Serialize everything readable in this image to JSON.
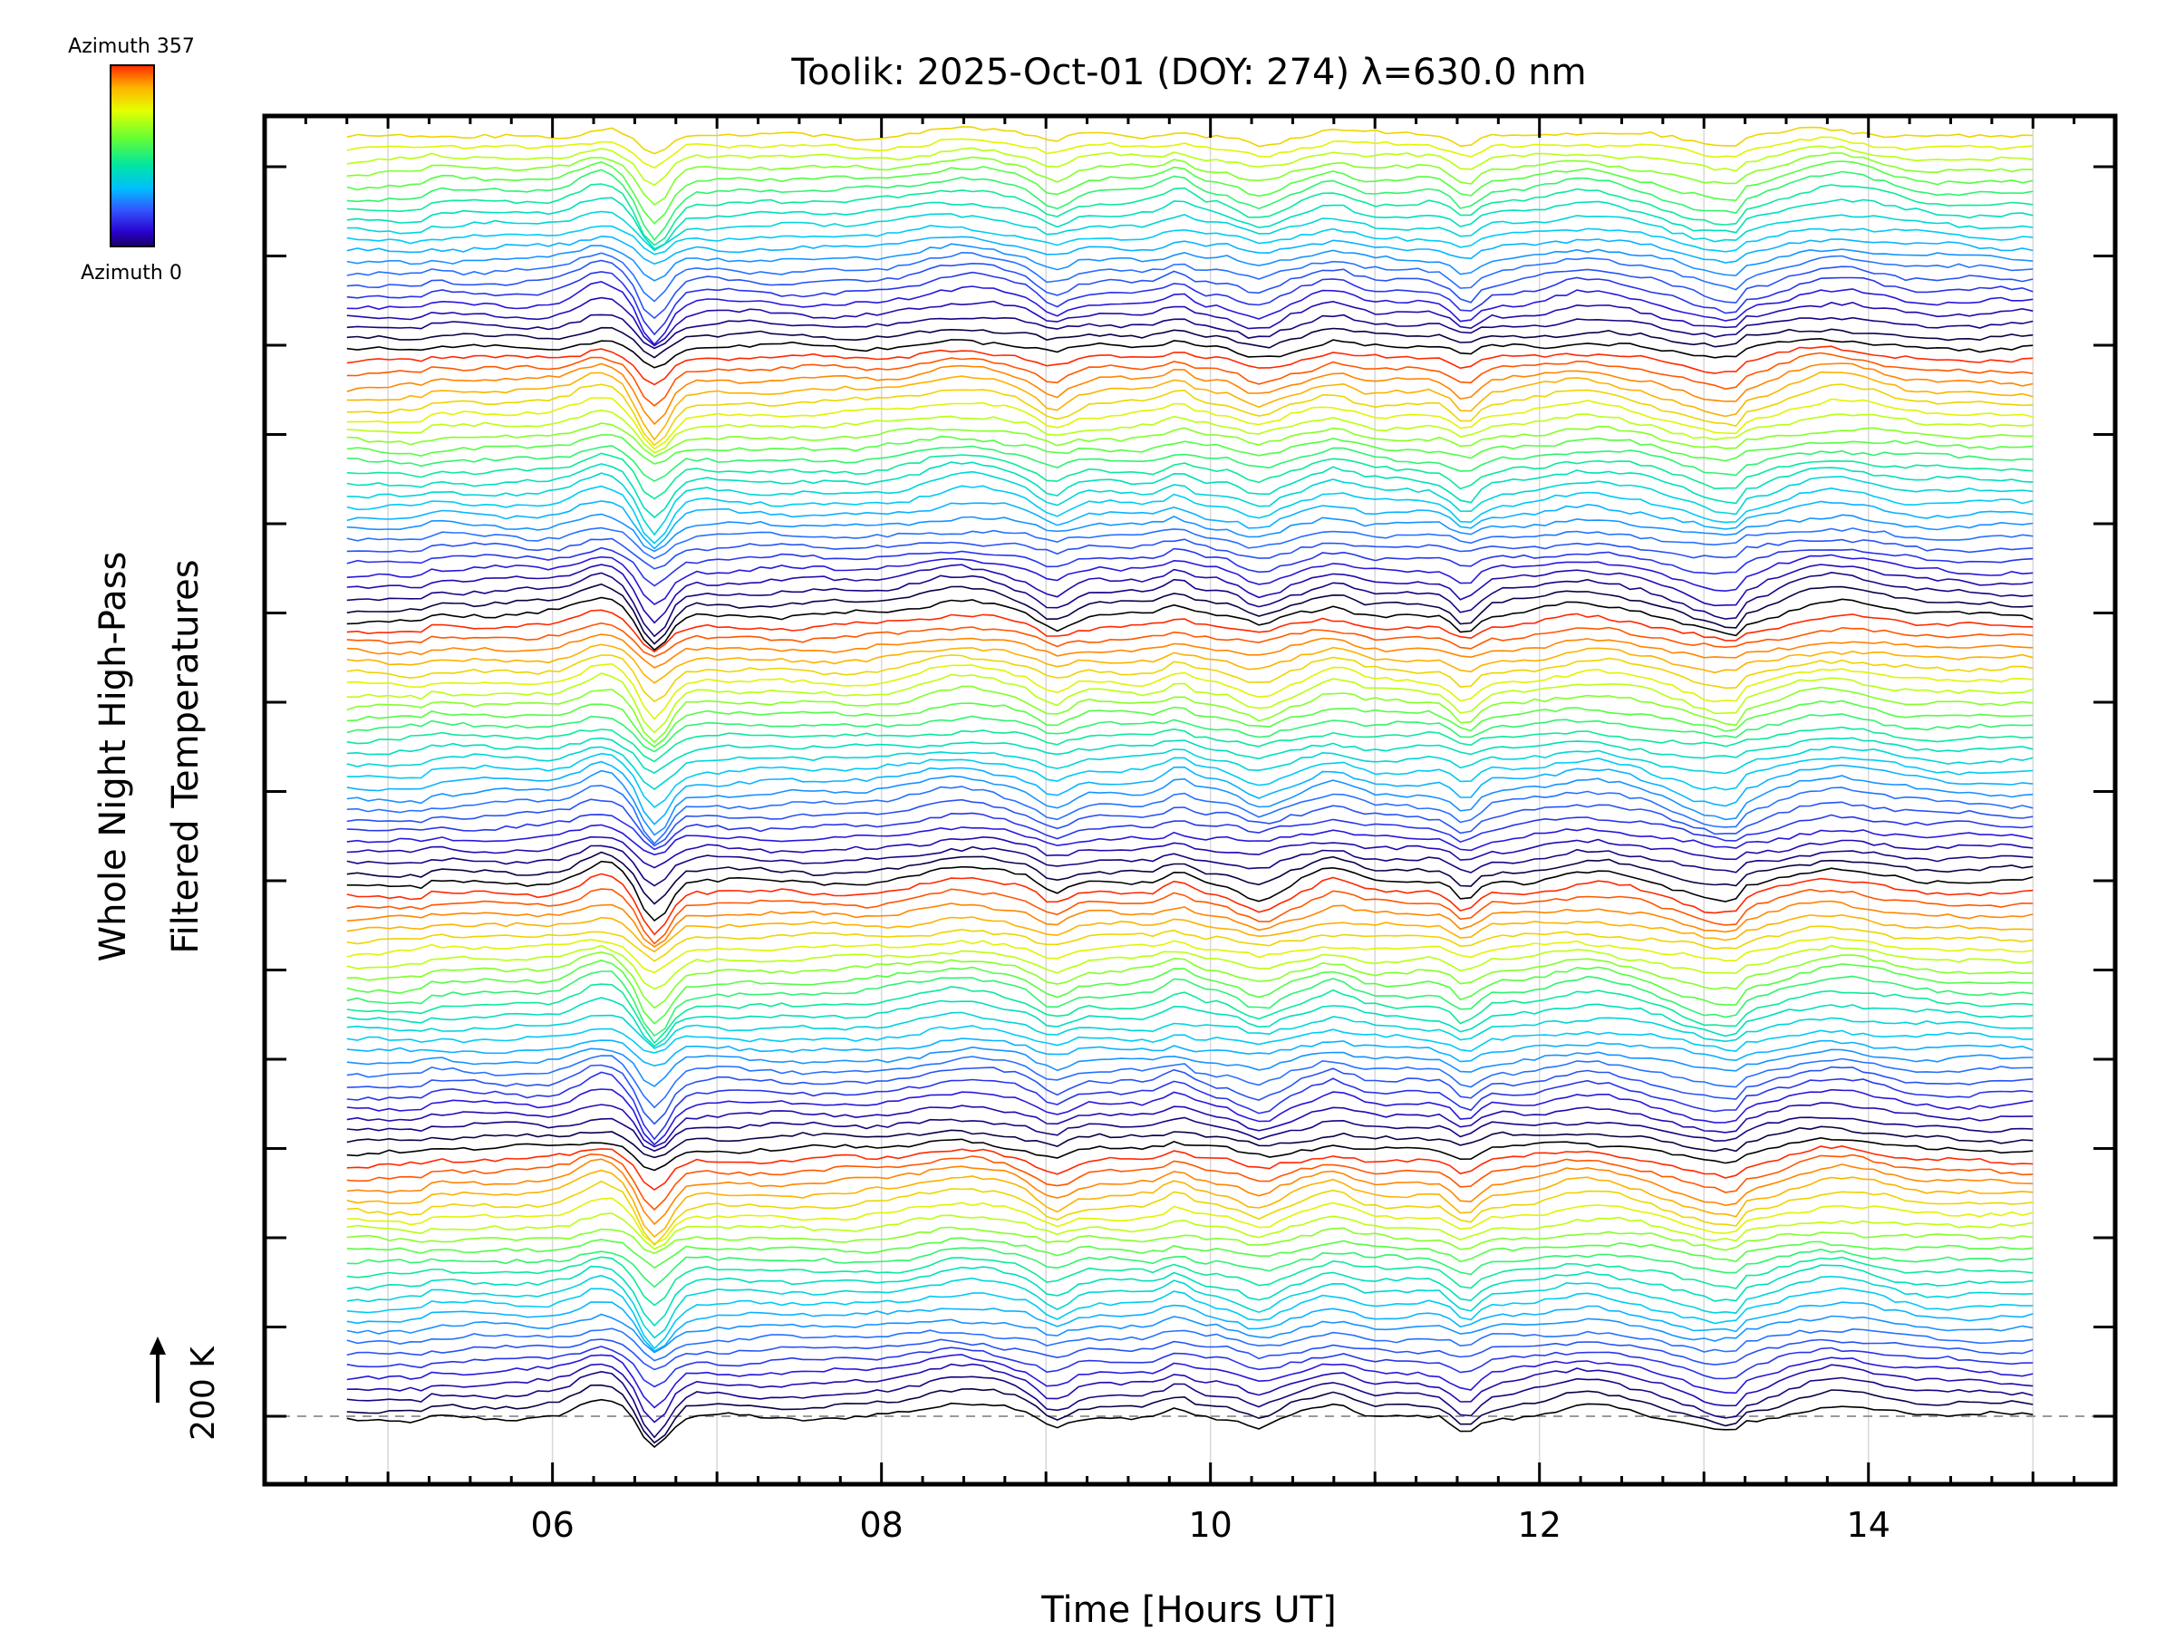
{
  "chart_data": {
    "type": "line",
    "title": "Toolik: 2025-Oct-01 (DOY: 274) λ=630.0 nm",
    "xlabel": "Time [Hours UT]",
    "ylabel_line1": "Whole Night High-Pass",
    "ylabel_line2": "Filtered Temperatures",
    "x_unit": "Hours UT",
    "xlim": [
      4.25,
      15.5
    ],
    "x_ticks": [
      6,
      8,
      10,
      12,
      14
    ],
    "x_tick_labels": [
      "06",
      "08",
      "10",
      "12",
      "14"
    ],
    "x_data_range": [
      4.75,
      15.0
    ],
    "grid_hours": [
      5,
      6,
      7,
      8,
      9,
      10,
      11,
      12,
      13,
      14,
      15
    ],
    "baseline_label": "200 K",
    "colorbar": {
      "top_label": "Azimuth 357",
      "bottom_label": "Azimuth 0",
      "colors": [
        "#ff2a00",
        "#ffb000",
        "#e6ff00",
        "#66ff33",
        "#00e6a0",
        "#00bfff",
        "#3355ff",
        "#2a00cc",
        "#1a0066",
        "#000000"
      ]
    },
    "offset_traces": 116,
    "legend": "colorbar top-left",
    "grid": "vertical lines at each hour",
    "color_cycle_note": "traces stacked by azimuth; each repeats the colormap from dark to red"
  }
}
